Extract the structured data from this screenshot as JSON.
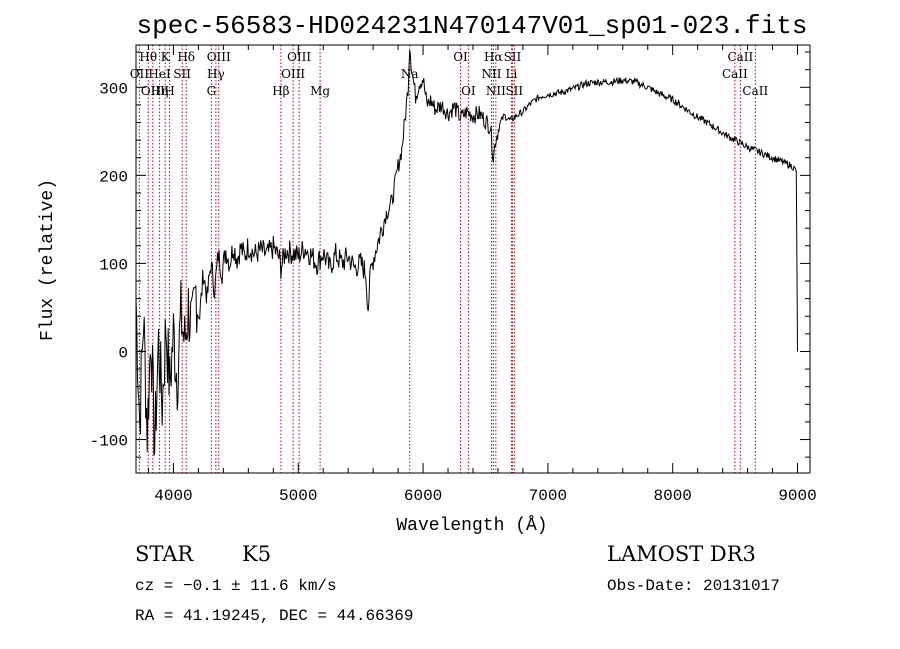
{
  "chart_data": {
    "type": "line",
    "title": "spec-56583-HD024231N470147V01_sp01-023.fits",
    "xlabel": "Wavelength (Å)",
    "ylabel": "Flux (relative)",
    "xlim": [
      3700,
      9100
    ],
    "ylim": [
      -138,
      348
    ],
    "xticks": [
      4000,
      5000,
      6000,
      7000,
      8000,
      9000
    ],
    "yticks": [
      -100,
      0,
      100,
      200,
      300
    ],
    "grid": false,
    "series": [
      {
        "name": "spectrum",
        "x": [
          3700,
          3730,
          3760,
          3790,
          3820,
          3850,
          3880,
          3910,
          3940,
          3970,
          4000,
          4030,
          4060,
          4090,
          4120,
          4150,
          4180,
          4210,
          4240,
          4270,
          4300,
          4330,
          4360,
          4390,
          4420,
          4450,
          4480,
          4510,
          4540,
          4570,
          4600,
          4650,
          4700,
          4750,
          4800,
          4850,
          4861,
          4900,
          4950,
          5000,
          5050,
          5100,
          5150,
          5200,
          5250,
          5300,
          5350,
          5400,
          5450,
          5500,
          5540,
          5560,
          5580,
          5600,
          5650,
          5700,
          5750,
          5800,
          5830,
          5860,
          5880,
          5893,
          5910,
          5940,
          5970,
          6000,
          6030,
          6060,
          6100,
          6150,
          6200,
          6250,
          6300,
          6350,
          6400,
          6450,
          6500,
          6540,
          6563,
          6580,
          6620,
          6650,
          6700,
          6750,
          6800,
          6850,
          6900,
          6950,
          7000,
          7100,
          7200,
          7300,
          7400,
          7500,
          7600,
          7700,
          7750,
          7800,
          7900,
          8000,
          8100,
          8200,
          8300,
          8400,
          8500,
          8600,
          8700,
          8800,
          8900,
          8960,
          8990,
          9000
        ],
        "y": [
          60,
          -80,
          40,
          -90,
          20,
          -110,
          10,
          -60,
          30,
          -40,
          20,
          -30,
          40,
          10,
          50,
          20,
          70,
          40,
          90,
          60,
          100,
          70,
          110,
          90,
          115,
          100,
          120,
          105,
          118,
          108,
          120,
          110,
          115,
          110,
          118,
          105,
          95,
          115,
          112,
          108,
          118,
          110,
          100,
          112,
          95,
          110,
          100,
          108,
          95,
          100,
          90,
          50,
          90,
          105,
          130,
          155,
          170,
          210,
          230,
          270,
          300,
          350,
          320,
          290,
          305,
          310,
          280,
          285,
          275,
          280,
          270,
          278,
          265,
          272,
          268,
          270,
          262,
          255,
          220,
          240,
          260,
          268,
          262,
          268,
          272,
          280,
          286,
          290,
          292,
          294,
          298,
          304,
          306,
          306,
          308,
          306,
          303,
          300,
          292,
          286,
          276,
          266,
          258,
          248,
          240,
          232,
          226,
          220,
          214,
          210,
          205,
          0
        ]
      }
    ],
    "line_labels": [
      {
        "text": "OII",
        "wavelength": 3727,
        "row": 2
      },
      {
        "text": "Hθ",
        "wavelength": 3798,
        "row": 1
      },
      {
        "text": "OIII",
        "wavelength": 3835,
        "row": 3
      },
      {
        "text": "HeI",
        "wavelength": 3889,
        "row": 2
      },
      {
        "text": "K",
        "wavelength": 3934,
        "row": 1
      },
      {
        "text": "Hη",
        "wavelength": 3889,
        "row": 3
      },
      {
        "text": "H",
        "wavelength": 3969,
        "row": 3
      },
      {
        "text": "SII",
        "wavelength": 4070,
        "row": 2
      },
      {
        "text": "Hδ",
        "wavelength": 4102,
        "row": 1
      },
      {
        "text": "OIII",
        "wavelength": 4363,
        "row": 1
      },
      {
        "text": "Hγ",
        "wavelength": 4340,
        "row": 2
      },
      {
        "text": "G",
        "wavelength": 4304,
        "row": 3
      },
      {
        "text": "OIII",
        "wavelength": 5007,
        "row": 1
      },
      {
        "text": "OIII",
        "wavelength": 4959,
        "row": 2
      },
      {
        "text": "Hβ",
        "wavelength": 4861,
        "row": 3
      },
      {
        "text": "Mg",
        "wavelength": 5175,
        "row": 3
      },
      {
        "text": "Na",
        "wavelength": 5893,
        "row": 2
      },
      {
        "text": "OI",
        "wavelength": 6300,
        "row": 1
      },
      {
        "text": "OI",
        "wavelength": 6363,
        "row": 3
      },
      {
        "text": "Hα",
        "wavelength": 6563,
        "row": 1
      },
      {
        "text": "SII",
        "wavelength": 6716,
        "row": 1
      },
      {
        "text": "NII",
        "wavelength": 6548,
        "row": 2
      },
      {
        "text": "Li",
        "wavelength": 6708,
        "row": 2
      },
      {
        "text": "NII",
        "wavelength": 6583,
        "row": 3
      },
      {
        "text": "SII",
        "wavelength": 6731,
        "row": 3
      },
      {
        "text": "CaII",
        "wavelength": 8542,
        "row": 1
      },
      {
        "text": "CaII",
        "wavelength": 8498,
        "row": 2
      },
      {
        "text": "CaII",
        "wavelength": 8662,
        "row": 3
      }
    ],
    "marker_lines": [
      3727,
      3798,
      3835,
      3889,
      3934,
      3969,
      4070,
      4102,
      4304,
      4340,
      4363,
      4861,
      4959,
      5007,
      5175,
      5893,
      6300,
      6363,
      6548,
      6563,
      6583,
      6708,
      6716,
      6731,
      8498,
      8542,
      8662
    ]
  },
  "info": {
    "object_class": "STAR",
    "subclass": "K5",
    "survey": "LAMOST DR3",
    "cz": "cz = −0.1 ± 11.6 km/s",
    "obs_date": "Obs-Date: 20131017",
    "coords": "RA =  41.19245, DEC =  44.66369"
  },
  "colors": {
    "spectrum": "#000000",
    "marker": "#cc0000",
    "axes": "#000000",
    "background": "#ffffff"
  }
}
